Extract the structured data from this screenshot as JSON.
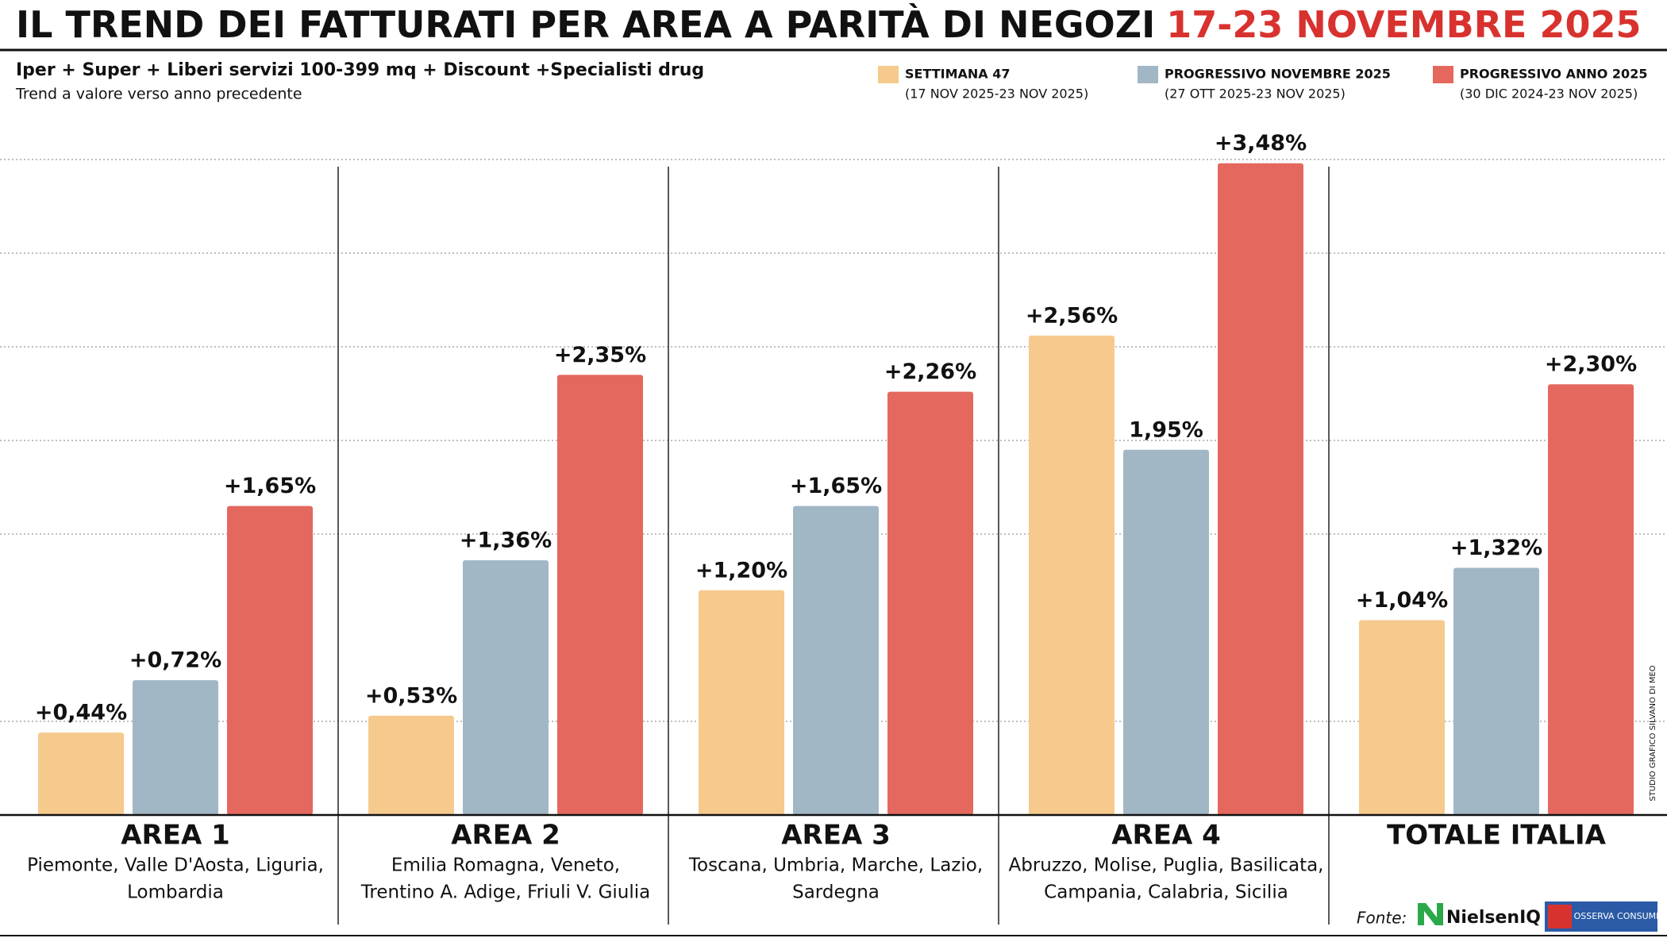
{
  "chart_data": {
    "type": "bar",
    "title": "IL TREND DEI FATTURATI PER AREA A PARITÀ DI NEGOZI",
    "title_highlight": "17-23 NOVEMBRE 2025",
    "subtitle": "Iper + Super + Liberi servizi 100-399 mq + Discount +Specialisti drug",
    "subtitle_note": "Trend a valore verso anno precedente",
    "categories": [
      "AREA 1",
      "AREA 2",
      "AREA 3",
      "AREA 4",
      "TOTALE ITALIA"
    ],
    "category_notes": [
      [
        "Piemonte, Valle D'Aosta, Liguria,",
        "Lombardia"
      ],
      [
        "Emilia Romagna, Veneto,",
        "Trentino A. Adige, Friuli V. Giulia"
      ],
      [
        "Toscana, Umbria, Marche, Lazio,",
        "Sardegna"
      ],
      [
        "Abruzzo, Molise, Puglia, Basilicata,",
        "Campania, Calabria, Sicilia"
      ],
      null
    ],
    "series": [
      {
        "name": "SETTIMANA 47",
        "period": "(17 NOV 2025-23 NOV 2025)",
        "color": "#f5ca8c",
        "values": [
          0.44,
          0.53,
          1.2,
          2.56,
          1.04
        ],
        "value_labels": [
          "+0,44%",
          "+0,53%",
          "+1,20%",
          "+2,56%",
          "+1,04%"
        ]
      },
      {
        "name": "PROGRESSIVO NOVEMBRE 2025",
        "period": "(27 OTT 2025-23 NOV 2025)",
        "color": "#a1b7c6",
        "values": [
          0.72,
          1.36,
          1.65,
          1.95,
          1.32
        ],
        "value_labels": [
          "+0,72%",
          "+1,36%",
          "+1,65%",
          "1,95%",
          "+1,32%"
        ]
      },
      {
        "name": "PROGRESSIVO ANNO 2025",
        "period": "(30 DIC 2024-23 NOV 2025)",
        "color": "#e4685e",
        "values": [
          1.65,
          2.35,
          2.26,
          3.48,
          2.3
        ],
        "value_labels": [
          "+1,65%",
          "+2,35%",
          "+2,26%",
          "+3,48%",
          "+2,30%"
        ]
      }
    ],
    "ylim": [
      0,
      3.5
    ],
    "yticks": [
      0.5,
      1.5,
      2,
      2.5,
      3,
      3.5
    ],
    "grid": true,
    "source_label": "Fonte:",
    "sources": [
      "NielsenIQ",
      "OSSERVA CONSUMI"
    ],
    "credit": "STUDIO GRAFICO SILVANO DI MEO"
  }
}
